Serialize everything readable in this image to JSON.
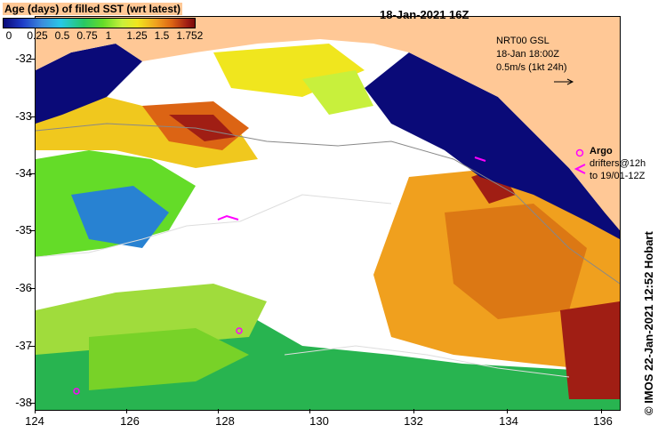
{
  "map": {
    "title": "18-Jan-2021 16Z",
    "colorbar": {
      "title": "Age (days) of filled SST (wrt latest)",
      "tick_labels": [
        "0",
        "0.25",
        "0.5",
        "0.75",
        "1",
        "1.25",
        "1.5",
        "1.75",
        "2"
      ]
    },
    "latitude_ticks": [
      "-32",
      "-33",
      "-34",
      "-35",
      "-36",
      "-37",
      "-38"
    ],
    "longitude_ticks": [
      "124",
      "126",
      "128",
      "130",
      "132",
      "134",
      "136"
    ],
    "info": {
      "line1": "NRT00 GSL",
      "line2": "18-Jan 18:00Z",
      "line3": "0.5m/s (1kt 24h)"
    },
    "legend": {
      "argo_label": "Argo",
      "drifters_label": "drifters@12h",
      "drifters_to": "to 19/01-12Z"
    },
    "credit": "© IMOS 22-Jan-2021 12:52 Hobart",
    "colors": {
      "land": "#ffc896",
      "ocean_old": "#0a0a78",
      "argo": "#ff00ff",
      "no_data": "#ffffff"
    }
  }
}
